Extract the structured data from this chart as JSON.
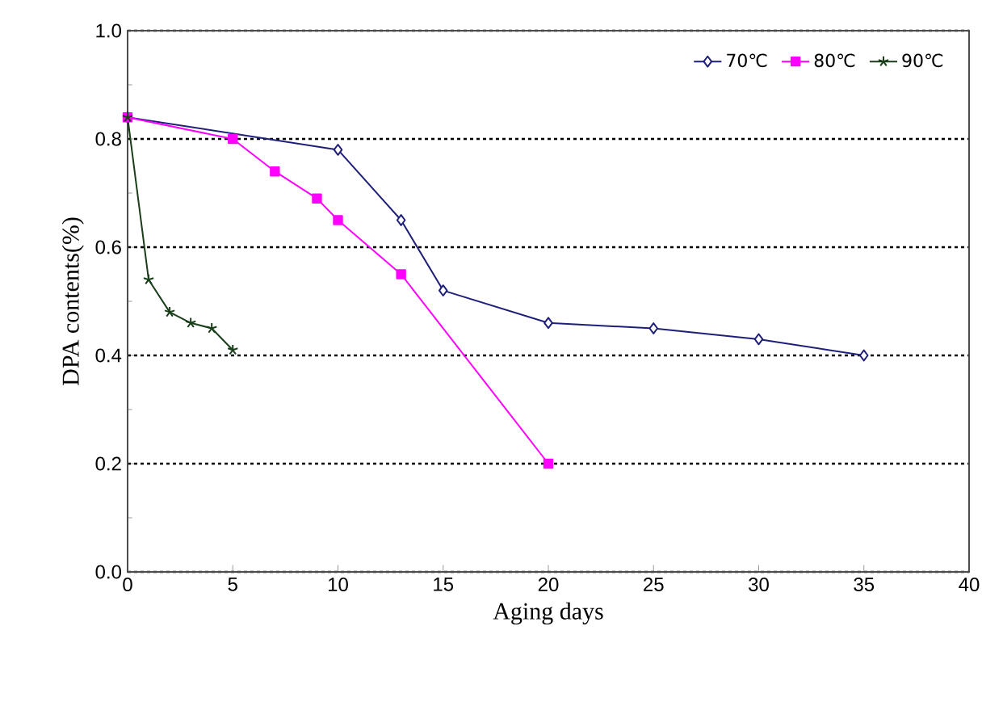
{
  "chart_data": {
    "type": "line",
    "xlabel": "Aging days",
    "ylabel": "DPA contents(%)",
    "xlim": [
      0,
      40
    ],
    "xticks": [
      0,
      5,
      10,
      15,
      20,
      25,
      30,
      35,
      40
    ],
    "ylim": [
      0,
      1
    ],
    "yticks": [
      {
        "value": 0,
        "label": "0.0"
      },
      {
        "value": 0.2,
        "label": "0.2"
      },
      {
        "value": 0.4,
        "label": "0.4"
      },
      {
        "value": 0.6,
        "label": "0.6"
      },
      {
        "value": 0.8,
        "label": "0.8"
      },
      {
        "value": 1,
        "label": "1.0"
      }
    ],
    "grid": "y",
    "legend": "top right",
    "line_style": "solid",
    "series": [
      {
        "name": "70℃",
        "color": "#1f1f7a",
        "marker": "diamond",
        "x": [
          0,
          10,
          13,
          15,
          20,
          25,
          30,
          35
        ],
        "values": [
          0.84,
          0.78,
          0.65,
          0.52,
          0.46,
          0.45,
          0.43,
          0.4
        ]
      },
      {
        "name": "80℃",
        "color": "#ff00ff",
        "marker": "square",
        "x": [
          0,
          5,
          7,
          9,
          10,
          13,
          20
        ],
        "values": [
          0.84,
          0.8,
          0.74,
          0.69,
          0.65,
          0.55,
          0.2
        ]
      },
      {
        "name": "90℃",
        "color": "#1a3d1a",
        "marker": "cross",
        "x": [
          0,
          1,
          2,
          3,
          4,
          5
        ],
        "values": [
          0.84,
          0.54,
          0.48,
          0.46,
          0.45,
          0.41
        ]
      }
    ]
  }
}
